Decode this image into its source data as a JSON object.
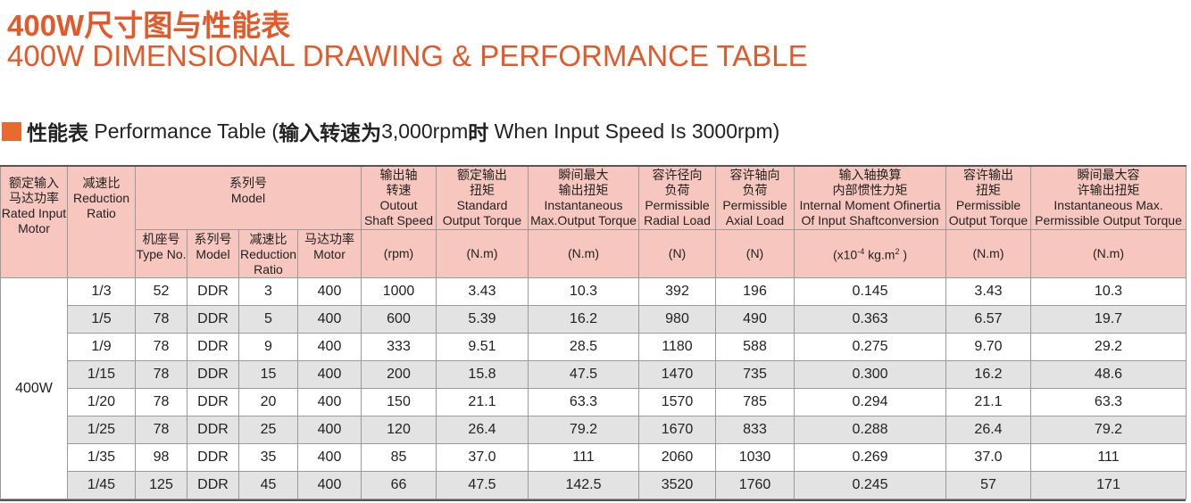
{
  "title_cn": "400W尺寸图与性能表",
  "title_en": "400W DIMENSIONAL DRAWING & PERFORMANCE TABLE",
  "section": {
    "cn1": "性能表",
    "en1": " Performance Table (",
    "cn2": "输入转速为",
    "en2": "3,000rpm",
    "cn3": "时",
    "en3": " When Input Speed Is 3000rpm)"
  },
  "colors": {
    "accent": "#e3592a",
    "header_bg": "#f7c7bf",
    "row_alt": "#e3e3e3"
  },
  "headers": {
    "rated_input": "额定输入\n马达功率\nRated Input\nMotor",
    "reduction": "减速比\nReduction\nRatio",
    "model": "系列号\nModel",
    "type_no": "机座号\nType No.",
    "series": "系列号\nModel",
    "ratio": "减速比\nReduction\nRatio",
    "motor": "马达功率\nMotor",
    "output_speed": "输出轴\n转速\nOutout\nShaft Speed",
    "standard_torque": "额定输出\n扭矩\nStandard\nOutput Torque",
    "instant_torque": "瞬间最大\n输出扭矩\nInstantaneous\nMax.Output Torque",
    "radial_load": "容许径向\n负荷\nPermissible\nRadial Load",
    "axial_load": "容许轴向\n负荷\nPermissible\nAxial Load",
    "inertia": "输入轴换算\n内部惯性力矩\nInternal Moment Ofinertia\nOf Input Shaftconversion",
    "perm_torque": "容许输出\n扭矩\nPermissible\nOutput Torque",
    "perm_max_torque": "瞬间最大容\n许输出扭矩\nInstantaneous Max.\nPermissible Output Torque",
    "unit_rpm": "(rpm)",
    "unit_nm": "(N.m)",
    "unit_n": "(N)",
    "unit_inertia_pre": "(x10",
    "unit_inertia_exp": "-4",
    "unit_inertia_mid": " kg.m",
    "unit_inertia_sq": "2",
    "unit_inertia_post": " )"
  },
  "power_label": "400W",
  "rows": [
    [
      "1/3",
      "52",
      "DDR",
      "3",
      "400",
      "1000",
      "3.43",
      "10.3",
      "392",
      "196",
      "0.145",
      "3.43",
      "10.3"
    ],
    [
      "1/5",
      "78",
      "DDR",
      "5",
      "400",
      "600",
      "5.39",
      "16.2",
      "980",
      "490",
      "0.363",
      "6.57",
      "19.7"
    ],
    [
      "1/9",
      "78",
      "DDR",
      "9",
      "400",
      "333",
      "9.51",
      "28.5",
      "1180",
      "588",
      "0.275",
      "9.70",
      "29.2"
    ],
    [
      "1/15",
      "78",
      "DDR",
      "15",
      "400",
      "200",
      "15.8",
      "47.5",
      "1470",
      "735",
      "0.300",
      "16.2",
      "48.6"
    ],
    [
      "1/20",
      "78",
      "DDR",
      "20",
      "400",
      "150",
      "21.1",
      "63.3",
      "1570",
      "785",
      "0.294",
      "21.1",
      "63.3"
    ],
    [
      "1/25",
      "78",
      "DDR",
      "25",
      "400",
      "120",
      "26.4",
      "79.2",
      "1670",
      "833",
      "0.288",
      "26.4",
      "79.2"
    ],
    [
      "1/35",
      "98",
      "DDR",
      "35",
      "400",
      "85",
      "37.0",
      "111",
      "2060",
      "1030",
      "0.269",
      "37.0",
      "111"
    ],
    [
      "1/45",
      "125",
      "DDR",
      "45",
      "400",
      "66",
      "47.5",
      "142.5",
      "3520",
      "1760",
      "0.245",
      "57",
      "171"
    ]
  ]
}
